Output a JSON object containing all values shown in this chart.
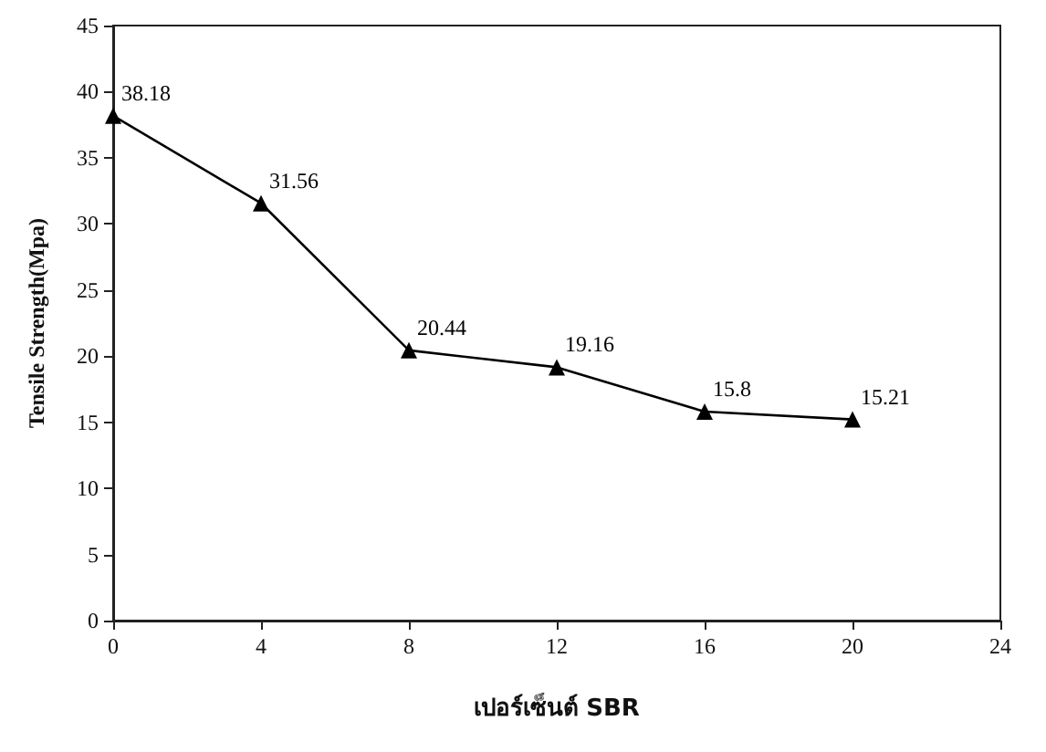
{
  "chart_data": {
    "type": "line",
    "xlabel": "เปอร์เซ็นต์ SBR",
    "ylabel": "Tensile Strength(Mpa)",
    "x": [
      0,
      4,
      8,
      12,
      16,
      20
    ],
    "values": [
      38.18,
      31.56,
      20.44,
      19.16,
      15.8,
      15.21
    ],
    "color": "#000000",
    "xlim": [
      0,
      24
    ],
    "xticks": [
      0,
      4,
      8,
      12,
      16,
      20,
      24
    ],
    "ylim": [
      0,
      45
    ],
    "yticks": [
      0,
      5,
      10,
      15,
      20,
      25,
      30,
      35,
      40,
      45
    ],
    "grid": false,
    "marker": "triangle",
    "line_style": "solid",
    "data_labels": true
  }
}
